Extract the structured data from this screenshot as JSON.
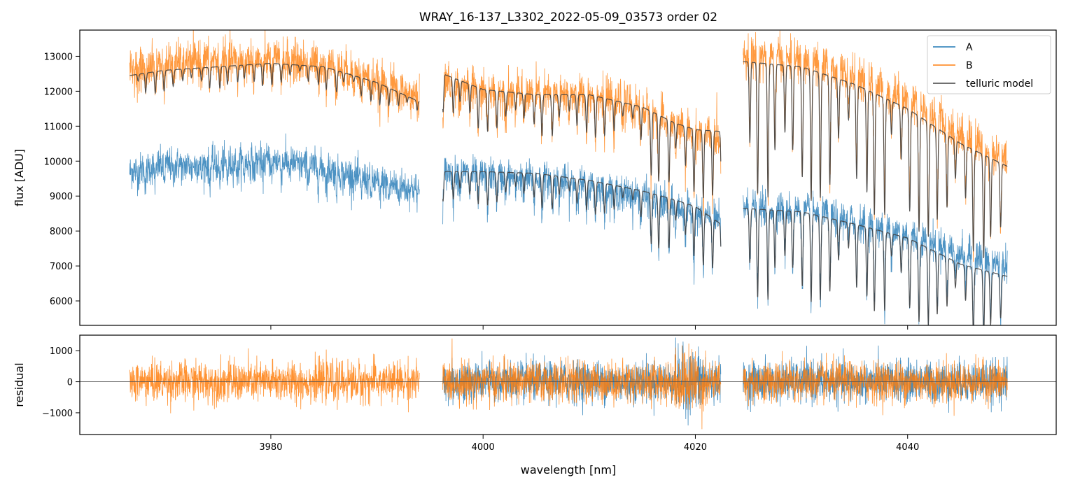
{
  "chart_data": {
    "type": "line",
    "title": "WRAY_16-137_L3302_2022-05-09_03573  order 02",
    "xlabel": "wavelength [nm]",
    "colors": {
      "A": "#1f77b4",
      "B": "#ff7f0e",
      "model": "#404040",
      "zero": "#555555"
    },
    "xlim": [
      3962,
      4054
    ],
    "x_ticks": [
      3980,
      4000,
      4020,
      4040
    ],
    "x_tick_labels": [
      "3980",
      "4000",
      "4020",
      "4040"
    ],
    "segments": [
      [
        3966.7,
        3994.0
      ],
      [
        3996.2,
        4022.4
      ],
      [
        4024.5,
        4049.4
      ]
    ],
    "legend": {
      "location": "upper-right",
      "entries": [
        "A",
        "B",
        "telluric model"
      ]
    },
    "panels": [
      {
        "name": "flux",
        "ylabel": "flux [ADU]",
        "ylim": [
          5300,
          13750
        ],
        "y_ticks": [
          6000,
          7000,
          8000,
          9000,
          10000,
          11000,
          12000,
          13000
        ],
        "y_tick_labels": [
          "6000",
          "7000",
          "8000",
          "9000",
          "10000",
          "11000",
          "12000",
          "13000"
        ],
        "series": [
          {
            "name": "A",
            "noise": 550,
            "continuum": {
              "x": [
                3966.7,
                3970,
                3975,
                3980,
                3985,
                3990,
                3994.0,
                3996.2,
                4000,
                4005,
                4010,
                4015,
                4018,
                4020,
                4022.4,
                4024.5,
                4030,
                4035,
                4040,
                4045,
                4049.4
              ],
              "y": [
                9700,
                9900,
                9900,
                10050,
                9800,
                9400,
                9200,
                9700,
                9600,
                9500,
                9300,
                9000,
                8700,
                8500,
                8300,
                8700,
                8600,
                8300,
                7900,
                7400,
                7000
              ]
            }
          },
          {
            "name": "B",
            "noise": 650,
            "continuum": {
              "x": [
                3966.7,
                3970,
                3975,
                3980,
                3985,
                3990,
                3994.0,
                3996.2,
                4000,
                4005,
                4010,
                4015,
                4018,
                4020,
                4022.4,
                4024.5,
                4030,
                4035,
                4040,
                4045,
                4049.4
              ],
              "y": [
                12600,
                12800,
                12900,
                12900,
                12800,
                12300,
                11800,
                12300,
                12000,
                11900,
                11900,
                11500,
                11000,
                10800,
                10700,
                13100,
                12900,
                12400,
                11800,
                10800,
                10000
              ]
            }
          },
          {
            "name": "telluric model (A)",
            "model_for": "A",
            "continuum": {
              "x": [
                3996.2,
                4000,
                4005,
                4010,
                4015,
                4018,
                4020,
                4022.4,
                4024.5,
                4030,
                4035,
                4040,
                4045,
                4049.4
              ],
              "y": [
                9700,
                9700,
                9650,
                9450,
                9150,
                8900,
                8700,
                8200,
                8650,
                8550,
                8200,
                7800,
                7050,
                6700
              ]
            }
          },
          {
            "name": "telluric model (B)",
            "model_for": "B",
            "continuum": {
              "x": [
                3966.7,
                3970,
                3975,
                3980,
                3985,
                3990,
                3994.0,
                3996.2,
                4000,
                4005,
                4010,
                4015,
                4018,
                4020,
                4022.4,
                4024.5,
                4030,
                4035,
                4040,
                4045,
                4049.4
              ],
              "y": [
                12450,
                12600,
                12700,
                12800,
                12700,
                12250,
                11700,
                12500,
                12050,
                11900,
                11900,
                11550,
                11100,
                10900,
                10850,
                12850,
                12700,
                12200,
                11500,
                10500,
                9850
              ]
            }
          }
        ]
      },
      {
        "name": "residual",
        "ylabel": "residual",
        "ylim": [
          -1700,
          1500
        ],
        "y_ticks": [
          -1000,
          0,
          1000
        ],
        "y_tick_labels": [
          "−1000",
          "0",
          "1000"
        ],
        "series": [
          {
            "name": "A residual",
            "noise": 650
          },
          {
            "name": "B residual",
            "noise": 650
          }
        ]
      }
    ]
  }
}
